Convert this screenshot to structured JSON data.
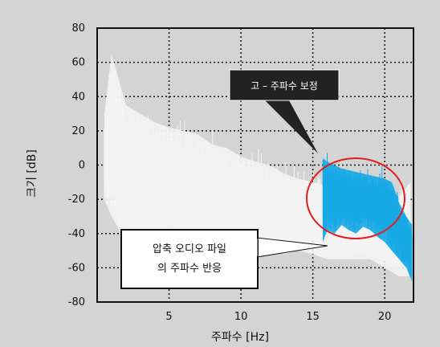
{
  "chart_data": {
    "type": "line",
    "xlabel": "주파수 [Hz]",
    "ylabel": "크기 [dB]",
    "xlim": [
      0,
      22
    ],
    "ylim": [
      -80,
      80
    ],
    "x_ticks": [
      5,
      10,
      15,
      20
    ],
    "y_ticks": [
      80,
      60,
      40,
      20,
      0,
      -20,
      -40,
      -60,
      -80
    ],
    "grid": "dotted",
    "series": [
      {
        "color": "#f3f3f3",
        "x": [
          0.5,
          1,
          2,
          3,
          4,
          5,
          6,
          7,
          8,
          9,
          10,
          11,
          12,
          13,
          14,
          15,
          16,
          17,
          18,
          19,
          20,
          21,
          21.8
        ],
        "upper": [
          30,
          65,
          35,
          30,
          25,
          22,
          20,
          18,
          12,
          10,
          5,
          2,
          0,
          -5,
          -8,
          -10,
          -12,
          -14,
          -15,
          -18,
          -18,
          -18,
          -10
        ],
        "lower": [
          -20,
          -30,
          -45,
          -55,
          -50,
          -50,
          -50,
          -48,
          -50,
          -50,
          -50,
          -50,
          -50,
          -52,
          -50,
          -52,
          -55,
          -55,
          -55,
          -55,
          -60,
          -65,
          -65
        ]
      },
      {
        "color": "#17a9e6",
        "x": [
          15.7,
          16,
          16.5,
          17,
          17.5,
          18,
          18.5,
          19,
          19.5,
          20,
          20.5,
          21,
          21.5,
          21.9
        ],
        "upper": [
          4,
          2,
          0,
          -2,
          -3,
          -4,
          -5,
          -6,
          -7,
          -8,
          -10,
          -22,
          -30,
          -35
        ],
        "lower": [
          -45,
          -38,
          -40,
          -35,
          -38,
          -40,
          -36,
          -38,
          -42,
          -45,
          -50,
          -55,
          -60,
          -68
        ]
      }
    ],
    "annotations": [
      {
        "text": "고 – 주파수 보정",
        "style": "dark-callout"
      },
      {
        "lines": [
          "압축 오디오 파일",
          "의 주파수 반응"
        ],
        "style": "white-callout"
      }
    ],
    "highlight": {
      "shape": "ellipse",
      "color": "#e51d1d"
    }
  }
}
